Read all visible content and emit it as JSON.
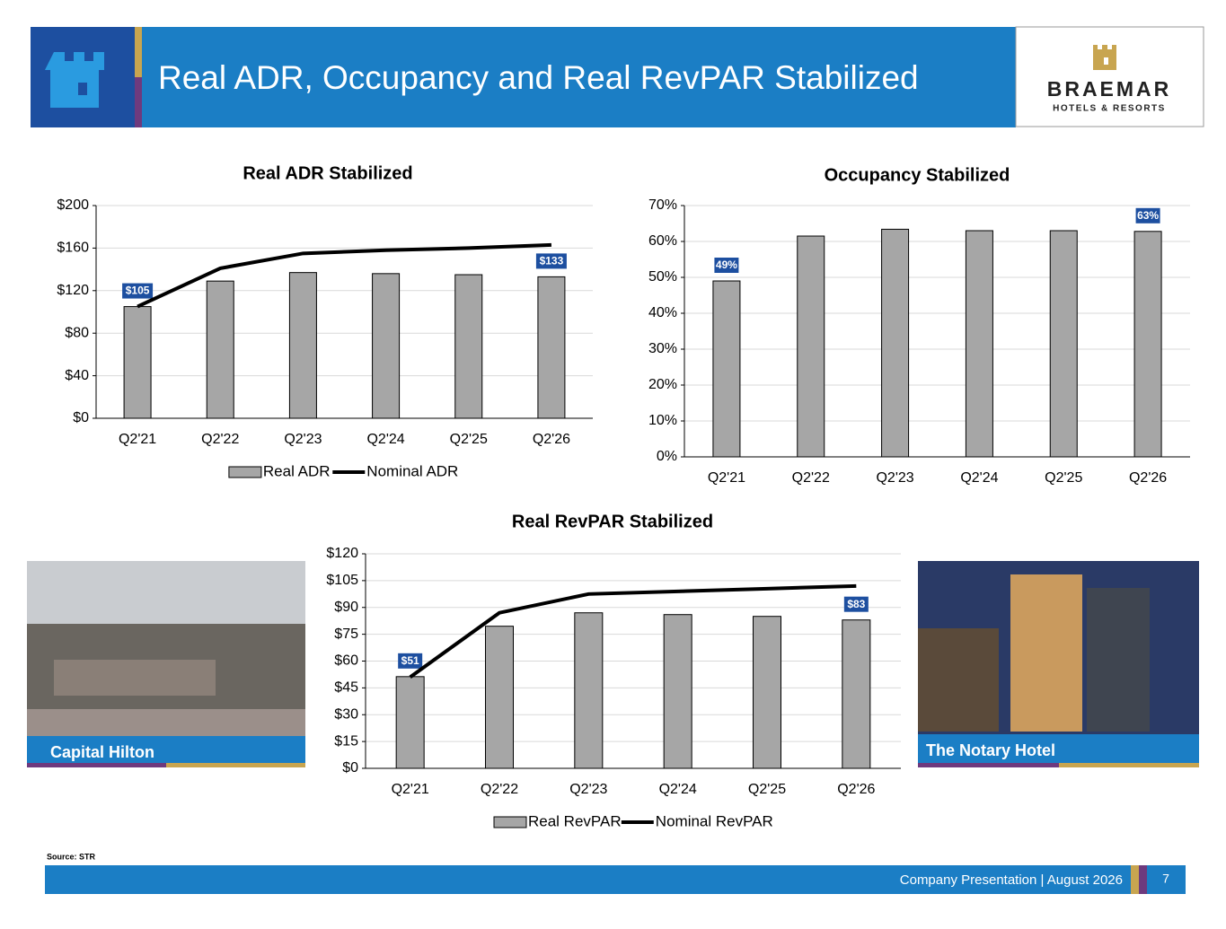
{
  "header": {
    "title": "Real ADR, Occupancy and Real RevPAR Stabilized",
    "logo_name": "BRAEMAR",
    "logo_sub": "HOTELS & RESORTS"
  },
  "chart_data": [
    {
      "type": "combo",
      "title": "Real ADR Stabilized",
      "categories": [
        "Q2'21",
        "Q2'22",
        "Q2'23",
        "Q2'24",
        "Q2'25",
        "Q2'26"
      ],
      "series": [
        {
          "name": "Real ADR",
          "style": "bar",
          "color": "#a6a6a6",
          "values": [
            105,
            129,
            137,
            136,
            135,
            133
          ],
          "value_labels": [
            "$105",
            null,
            null,
            null,
            null,
            "$133"
          ]
        },
        {
          "name": "Nominal ADR",
          "style": "line",
          "color": "#000000",
          "values": [
            105,
            141,
            155,
            158,
            160,
            163
          ]
        }
      ],
      "ylim": [
        0,
        200
      ],
      "yticks": [
        {
          "value": 0,
          "label": "$0"
        },
        {
          "value": 40,
          "label": "$40"
        },
        {
          "value": 80,
          "label": "$80"
        },
        {
          "value": 120,
          "label": "$120"
        },
        {
          "value": 160,
          "label": "$160"
        },
        {
          "value": 200,
          "label": "$200"
        }
      ],
      "grid": true,
      "legend": "bottom"
    },
    {
      "type": "bar",
      "title": "Occupancy Stabilized",
      "categories": [
        "Q2'21",
        "Q2'22",
        "Q2'23",
        "Q2'24",
        "Q2'25",
        "Q2'26"
      ],
      "values": [
        49,
        61.5,
        63.4,
        63,
        63,
        62.8
      ],
      "value_labels": [
        "49%",
        null,
        null,
        null,
        null,
        "63%"
      ],
      "color": "#a6a6a6",
      "ylim": [
        0,
        70
      ],
      "yticks": [
        {
          "value": 0,
          "label": "0%"
        },
        {
          "value": 10,
          "label": "10%"
        },
        {
          "value": 20,
          "label": "20%"
        },
        {
          "value": 30,
          "label": "30%"
        },
        {
          "value": 40,
          "label": "40%"
        },
        {
          "value": 50,
          "label": "50%"
        },
        {
          "value": 60,
          "label": "60%"
        },
        {
          "value": 70,
          "label": "70%"
        }
      ],
      "grid": true
    },
    {
      "type": "combo",
      "title": "Real RevPAR Stabilized",
      "categories": [
        "Q2'21",
        "Q2'22",
        "Q2'23",
        "Q2'24",
        "Q2'25",
        "Q2'26"
      ],
      "series": [
        {
          "name": "Real RevPAR",
          "style": "bar",
          "color": "#a6a6a6",
          "values": [
            51.3,
            79.5,
            87,
            86,
            85,
            83
          ],
          "value_labels": [
            "$51",
            null,
            null,
            null,
            null,
            "$83"
          ]
        },
        {
          "name": "Nominal RevPAR",
          "style": "line",
          "color": "#000000",
          "values": [
            51,
            87,
            97.5,
            99,
            100.5,
            102
          ]
        }
      ],
      "ylim": [
        0,
        120
      ],
      "yticks": [
        {
          "value": 0,
          "label": "$0"
        },
        {
          "value": 15,
          "label": "$15"
        },
        {
          "value": 30,
          "label": "$30"
        },
        {
          "value": 45,
          "label": "$45"
        },
        {
          "value": 60,
          "label": "$60"
        },
        {
          "value": 75,
          "label": "$75"
        },
        {
          "value": 90,
          "label": "$90"
        },
        {
          "value": 105,
          "label": "$105"
        },
        {
          "value": 120,
          "label": "$120"
        }
      ],
      "grid": true,
      "legend": "bottom"
    }
  ],
  "photos": [
    {
      "caption": "Capital Hilton"
    },
    {
      "caption": "The Notary Hotel"
    }
  ],
  "source": "Source: STR",
  "footer": {
    "text": "Company Presentation | August 2026",
    "page": "7"
  }
}
